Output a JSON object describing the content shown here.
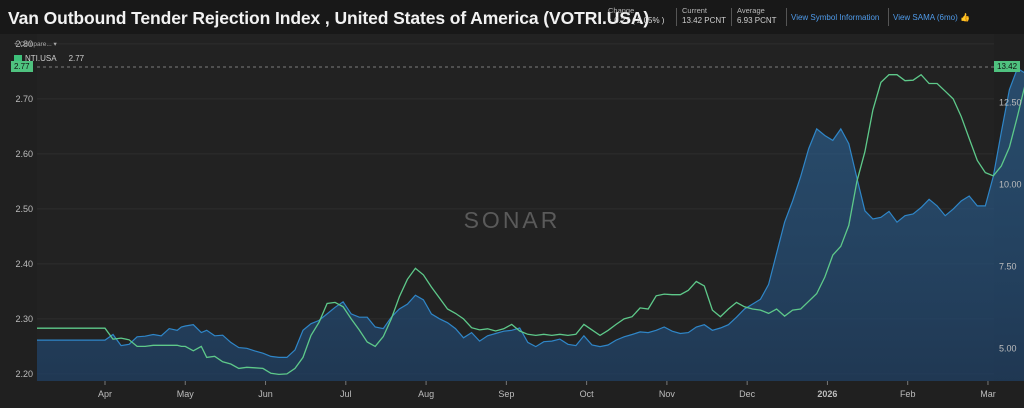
{
  "header": {
    "title": "Van Outbound Tender Rejection Index , United States of America (VOTRI.USA)",
    "change_label": "Change",
    "change_value": "↑ 0.27 ( 2.05% )",
    "current_label": "Current",
    "current_value": "13.42 PCNT",
    "average_label": "Average",
    "average_value": "6.93 PCNT",
    "link_symbol": "View Symbol Information",
    "link_sama": "View SAMA (6mo)",
    "sama_icon": "👍"
  },
  "legend": {
    "compare_label": "+ Compare... ▾",
    "series_name": "NTI.USA",
    "series_value": "2.77"
  },
  "watermark": "SONAR",
  "tags": {
    "left": "2.77",
    "right": "13.42"
  },
  "colors": {
    "green": "#5ec98a",
    "blue": "#2f86c8",
    "tag": "#4fc27f",
    "link": "#4f9bea"
  },
  "chart_data": {
    "type": "line",
    "x_ticks": [
      "Apr",
      "May",
      "Jun",
      "Jul",
      "Aug",
      "Sep",
      "Oct",
      "Nov",
      "Dec",
      "2026",
      "Feb",
      "Mar"
    ],
    "left_axis": {
      "ticks": [
        "2.20",
        "2.30",
        "2.40",
        "2.50",
        "2.60",
        "2.70",
        "2.80"
      ],
      "ylim": [
        2.187,
        2.818
      ]
    },
    "right_axis": {
      "ticks": [
        "5.00",
        "7.50",
        "10.00",
        "12.50"
      ],
      "ylim": [
        4.0,
        14.6
      ]
    },
    "series": [
      {
        "name": "NTI.USA",
        "axis": "left",
        "points": [
          [
            0.0,
            2.283
          ],
          [
            0.3,
            2.263
          ],
          [
            0.6,
            2.265
          ],
          [
            0.9,
            2.262
          ],
          [
            1.2,
            2.25
          ],
          [
            1.5,
            2.25
          ],
          [
            1.8,
            2.252
          ],
          [
            2.1,
            2.252
          ],
          [
            2.4,
            2.252
          ],
          [
            2.7,
            2.252
          ],
          [
            2.85,
            2.25
          ],
          [
            3.0,
            2.25
          ],
          [
            3.3,
            2.242
          ],
          [
            3.6,
            2.25
          ],
          [
            3.8,
            2.23
          ],
          [
            4.1,
            2.232
          ],
          [
            4.4,
            2.222
          ],
          [
            4.7,
            2.218
          ],
          [
            5.0,
            2.21
          ],
          [
            5.3,
            2.212
          ],
          [
            5.6,
            2.211
          ],
          [
            5.9,
            2.21
          ],
          [
            6.2,
            2.201
          ],
          [
            6.5,
            2.199
          ],
          [
            6.8,
            2.2
          ],
          [
            7.1,
            2.21
          ],
          [
            7.4,
            2.23
          ],
          [
            7.7,
            2.27
          ],
          [
            8.0,
            2.294
          ],
          [
            8.3,
            2.328
          ],
          [
            8.6,
            2.33
          ],
          [
            8.9,
            2.322
          ],
          [
            9.2,
            2.3
          ],
          [
            9.5,
            2.28
          ],
          [
            9.8,
            2.258
          ],
          [
            10.1,
            2.25
          ],
          [
            10.4,
            2.268
          ],
          [
            10.7,
            2.3
          ],
          [
            11.0,
            2.34
          ],
          [
            11.3,
            2.372
          ],
          [
            11.6,
            2.392
          ],
          [
            11.9,
            2.38
          ],
          [
            12.2,
            2.358
          ],
          [
            12.5,
            2.338
          ],
          [
            12.8,
            2.318
          ],
          [
            13.1,
            2.31
          ],
          [
            13.4,
            2.3
          ],
          [
            13.7,
            2.284
          ],
          [
            14.0,
            2.28
          ],
          [
            14.3,
            2.282
          ],
          [
            14.6,
            2.278
          ],
          [
            14.9,
            2.282
          ],
          [
            15.2,
            2.29
          ],
          [
            15.5,
            2.278
          ],
          [
            15.8,
            2.272
          ],
          [
            16.1,
            2.27
          ],
          [
            16.4,
            2.272
          ],
          [
            16.7,
            2.27
          ],
          [
            17.0,
            2.272
          ],
          [
            17.3,
            2.27
          ],
          [
            17.6,
            2.272
          ],
          [
            17.9,
            2.29
          ],
          [
            18.2,
            2.28
          ],
          [
            18.5,
            2.27
          ],
          [
            18.8,
            2.279
          ],
          [
            19.1,
            2.29
          ],
          [
            19.4,
            2.3
          ],
          [
            19.7,
            2.304
          ],
          [
            20.0,
            2.32
          ],
          [
            20.3,
            2.318
          ],
          [
            20.6,
            2.342
          ],
          [
            20.9,
            2.345
          ],
          [
            21.2,
            2.344
          ],
          [
            21.5,
            2.344
          ],
          [
            21.8,
            2.352
          ],
          [
            22.1,
            2.368
          ],
          [
            22.4,
            2.36
          ],
          [
            22.7,
            2.316
          ],
          [
            23.0,
            2.304
          ],
          [
            23.3,
            2.318
          ],
          [
            23.6,
            2.33
          ],
          [
            23.9,
            2.322
          ],
          [
            24.2,
            2.318
          ],
          [
            24.5,
            2.316
          ],
          [
            24.8,
            2.31
          ],
          [
            25.1,
            2.318
          ],
          [
            25.4,
            2.305
          ],
          [
            25.7,
            2.316
          ],
          [
            26.0,
            2.318
          ],
          [
            26.3,
            2.332
          ],
          [
            26.6,
            2.346
          ],
          [
            26.9,
            2.376
          ],
          [
            27.2,
            2.416
          ],
          [
            27.5,
            2.432
          ],
          [
            27.8,
            2.47
          ],
          [
            28.1,
            2.55
          ],
          [
            28.4,
            2.604
          ],
          [
            28.7,
            2.68
          ],
          [
            29.0,
            2.73
          ],
          [
            29.3,
            2.744
          ],
          [
            29.6,
            2.744
          ],
          [
            29.9,
            2.733
          ],
          [
            30.2,
            2.734
          ],
          [
            30.5,
            2.744
          ],
          [
            30.8,
            2.728
          ],
          [
            31.1,
            2.728
          ],
          [
            31.4,
            2.714
          ],
          [
            31.7,
            2.7
          ],
          [
            32.0,
            2.668
          ],
          [
            32.3,
            2.628
          ],
          [
            32.6,
            2.588
          ],
          [
            32.9,
            2.566
          ],
          [
            33.2,
            2.56
          ],
          [
            33.5,
            2.578
          ],
          [
            33.8,
            2.612
          ],
          [
            34.1,
            2.668
          ],
          [
            34.4,
            2.728
          ],
          [
            34.7,
            2.786
          ],
          [
            35.0,
            2.806
          ],
          [
            35.3,
            2.8
          ],
          [
            35.6,
            2.8
          ],
          [
            35.9,
            2.804
          ],
          [
            36.2,
            2.79
          ],
          [
            36.5,
            2.79
          ],
          [
            36.8,
            2.78
          ],
          [
            37.1,
            2.79
          ],
          [
            37.4,
            2.78
          ],
          [
            37.7,
            2.782
          ],
          [
            38.0,
            2.768
          ],
          [
            38.3,
            2.758
          ],
          [
            38.6,
            2.76
          ],
          [
            38.9,
            2.771
          ]
        ]
      },
      {
        "name": "VOTRI.USA",
        "axis": "right",
        "points": [
          [
            0.0,
            5.25
          ],
          [
            0.3,
            5.42
          ],
          [
            0.6,
            5.08
          ],
          [
            0.9,
            5.12
          ],
          [
            1.2,
            5.35
          ],
          [
            1.5,
            5.37
          ],
          [
            1.8,
            5.42
          ],
          [
            2.1,
            5.38
          ],
          [
            2.4,
            5.6
          ],
          [
            2.7,
            5.55
          ],
          [
            2.85,
            5.65
          ],
          [
            3.0,
            5.68
          ],
          [
            3.3,
            5.72
          ],
          [
            3.6,
            5.48
          ],
          [
            3.8,
            5.55
          ],
          [
            4.1,
            5.38
          ],
          [
            4.4,
            5.4
          ],
          [
            4.7,
            5.18
          ],
          [
            5.0,
            5.02
          ],
          [
            5.3,
            5.0
          ],
          [
            5.6,
            4.92
          ],
          [
            5.9,
            4.85
          ],
          [
            6.2,
            4.75
          ],
          [
            6.5,
            4.72
          ],
          [
            6.8,
            4.72
          ],
          [
            7.1,
            4.95
          ],
          [
            7.4,
            5.55
          ],
          [
            7.7,
            5.75
          ],
          [
            8.0,
            5.85
          ],
          [
            8.3,
            6.05
          ],
          [
            8.6,
            6.25
          ],
          [
            8.9,
            6.42
          ],
          [
            9.2,
            6.05
          ],
          [
            9.5,
            5.95
          ],
          [
            9.8,
            5.95
          ],
          [
            10.1,
            5.65
          ],
          [
            10.4,
            5.6
          ],
          [
            10.7,
            5.95
          ],
          [
            11.0,
            6.2
          ],
          [
            11.3,
            6.35
          ],
          [
            11.6,
            6.62
          ],
          [
            11.9,
            6.48
          ],
          [
            12.2,
            6.05
          ],
          [
            12.5,
            5.9
          ],
          [
            12.8,
            5.78
          ],
          [
            13.1,
            5.6
          ],
          [
            13.4,
            5.32
          ],
          [
            13.7,
            5.48
          ],
          [
            14.0,
            5.22
          ],
          [
            14.3,
            5.38
          ],
          [
            14.6,
            5.45
          ],
          [
            14.9,
            5.52
          ],
          [
            15.2,
            5.55
          ],
          [
            15.5,
            5.62
          ],
          [
            15.8,
            5.18
          ],
          [
            16.1,
            5.05
          ],
          [
            16.4,
            5.2
          ],
          [
            16.7,
            5.22
          ],
          [
            17.0,
            5.28
          ],
          [
            17.3,
            5.12
          ],
          [
            17.6,
            5.08
          ],
          [
            17.9,
            5.38
          ],
          [
            18.2,
            5.1
          ],
          [
            18.5,
            5.05
          ],
          [
            18.8,
            5.1
          ],
          [
            19.1,
            5.25
          ],
          [
            19.4,
            5.35
          ],
          [
            19.7,
            5.42
          ],
          [
            20.0,
            5.5
          ],
          [
            20.3,
            5.48
          ],
          [
            20.6,
            5.55
          ],
          [
            20.9,
            5.65
          ],
          [
            21.2,
            5.52
          ],
          [
            21.5,
            5.45
          ],
          [
            21.8,
            5.48
          ],
          [
            22.1,
            5.65
          ],
          [
            22.4,
            5.72
          ],
          [
            22.7,
            5.55
          ],
          [
            23.0,
            5.62
          ],
          [
            23.3,
            5.72
          ],
          [
            23.6,
            5.95
          ],
          [
            23.9,
            6.2
          ],
          [
            24.2,
            6.35
          ],
          [
            24.5,
            6.5
          ],
          [
            24.8,
            6.95
          ],
          [
            25.1,
            7.9
          ],
          [
            25.4,
            8.85
          ],
          [
            25.7,
            9.5
          ],
          [
            26.0,
            10.25
          ],
          [
            26.3,
            11.1
          ],
          [
            26.6,
            11.7
          ],
          [
            26.9,
            11.5
          ],
          [
            27.2,
            11.35
          ],
          [
            27.5,
            11.7
          ],
          [
            27.8,
            11.25
          ],
          [
            28.1,
            10.2
          ],
          [
            28.4,
            9.2
          ],
          [
            28.7,
            8.95
          ],
          [
            29.0,
            9.0
          ],
          [
            29.3,
            9.18
          ],
          [
            29.6,
            8.85
          ],
          [
            29.9,
            9.05
          ],
          [
            30.2,
            9.1
          ],
          [
            30.5,
            9.3
          ],
          [
            30.8,
            9.55
          ],
          [
            31.1,
            9.35
          ],
          [
            31.4,
            9.05
          ],
          [
            31.7,
            9.25
          ],
          [
            32.0,
            9.5
          ],
          [
            32.3,
            9.65
          ],
          [
            32.6,
            9.35
          ],
          [
            32.9,
            9.35
          ],
          [
            33.2,
            10.25
          ],
          [
            33.5,
            11.6
          ],
          [
            33.8,
            12.9
          ],
          [
            34.1,
            13.55
          ],
          [
            34.4,
            13.4
          ],
          [
            34.7,
            13.6
          ],
          [
            35.0,
            13.25
          ],
          [
            35.3,
            13.0
          ],
          [
            35.6,
            13.55
          ],
          [
            35.9,
            13.75
          ],
          [
            36.2,
            13.45
          ],
          [
            36.5,
            13.1
          ],
          [
            36.8,
            13.45
          ],
          [
            37.1,
            13.85
          ],
          [
            37.4,
            13.2
          ],
          [
            37.7,
            13.0
          ],
          [
            38.0,
            12.85
          ],
          [
            38.3,
            12.9
          ],
          [
            38.6,
            13.0
          ],
          [
            38.9,
            13.42
          ]
        ]
      }
    ]
  }
}
